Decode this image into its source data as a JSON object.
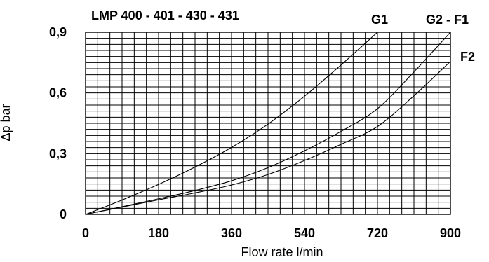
{
  "chart_data": {
    "type": "line",
    "title": "LMP 400 - 401 - 430 - 431",
    "xlabel": "Flow rate l/min",
    "ylabel": "Δp bar",
    "xlim": [
      0,
      900
    ],
    "ylim": [
      0,
      0.9
    ],
    "x_ticks": [
      "0",
      "180",
      "360",
      "540",
      "720",
      "900"
    ],
    "y_ticks": [
      "0",
      "0,3",
      "0,6",
      "0,9"
    ],
    "grid": true,
    "series": [
      {
        "name": "G1",
        "x": [
          0,
          90,
          180,
          270,
          360,
          450,
          540,
          630,
          720
        ],
        "y": [
          0,
          0.071,
          0.148,
          0.234,
          0.331,
          0.446,
          0.584,
          0.738,
          0.9
        ]
      },
      {
        "name": "G2 - F1",
        "x": [
          0,
          90,
          180,
          270,
          360,
          450,
          540,
          630,
          720,
          810,
          900
        ],
        "y": [
          0,
          0.038,
          0.077,
          0.118,
          0.166,
          0.231,
          0.314,
          0.41,
          0.522,
          0.704,
          0.9
        ]
      },
      {
        "name": "F2",
        "x": [
          0,
          90,
          180,
          270,
          360,
          450,
          540,
          630,
          720,
          810,
          900
        ],
        "y": [
          0,
          0.036,
          0.072,
          0.106,
          0.145,
          0.197,
          0.266,
          0.346,
          0.434,
          0.586,
          0.756
        ]
      }
    ]
  }
}
